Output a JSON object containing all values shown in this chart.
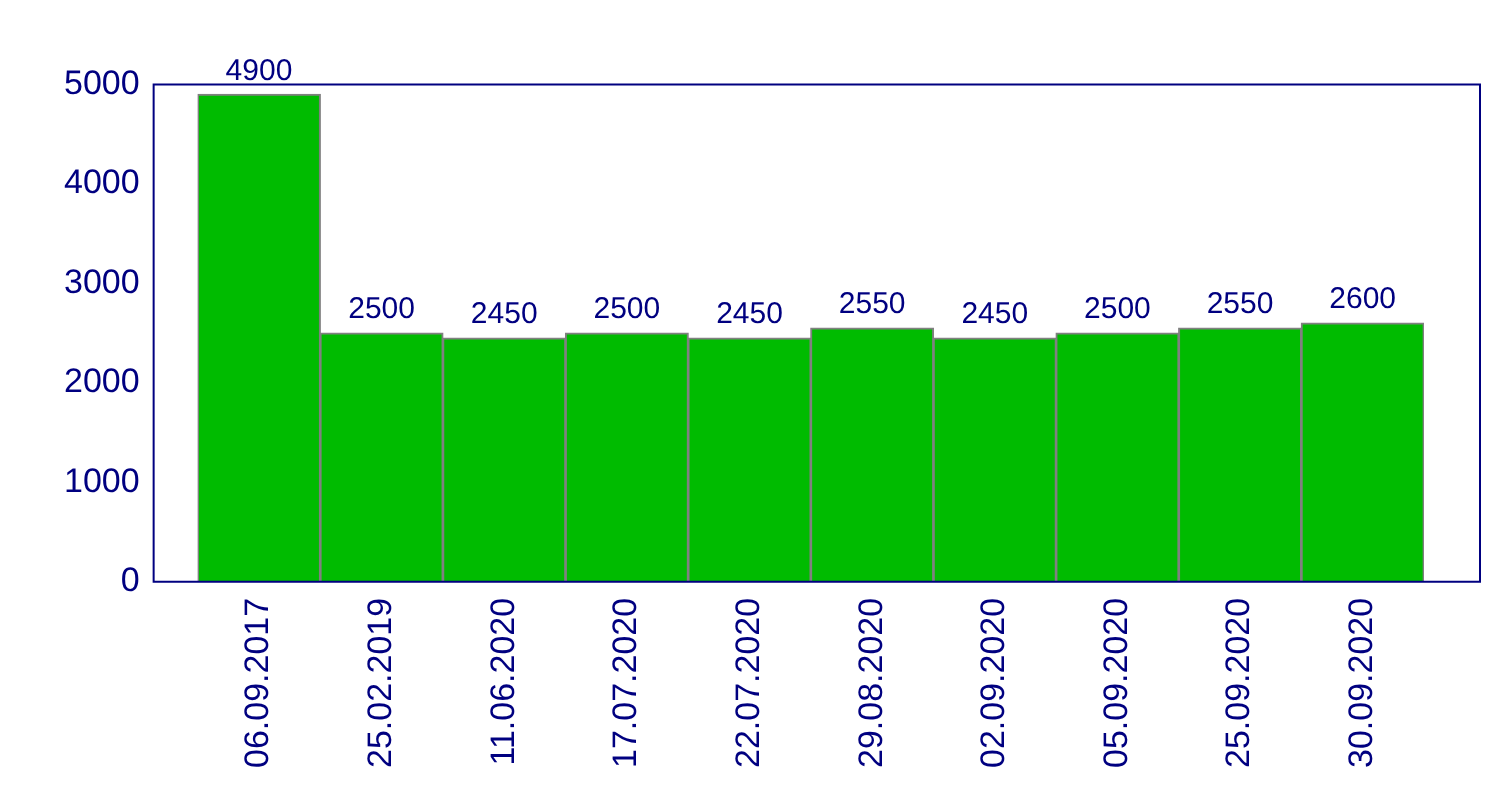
{
  "chart_data": {
    "type": "bar",
    "categories": [
      "06.09.2017",
      "25.02.2019",
      "11.06.2020",
      "17.07.2020",
      "22.07.2020",
      "29.08.2020",
      "02.09.2020",
      "05.09.2020",
      "25.09.2020",
      "30.09.2020"
    ],
    "values": [
      4900,
      2500,
      2450,
      2500,
      2450,
      2550,
      2450,
      2500,
      2550,
      2600
    ],
    "color": "#00bb00",
    "ylim": [
      0,
      5000
    ],
    "yticks": [
      0,
      1000,
      2000,
      3000,
      4000,
      5000
    ],
    "grid": false,
    "legend": false,
    "data_labels": true
  }
}
